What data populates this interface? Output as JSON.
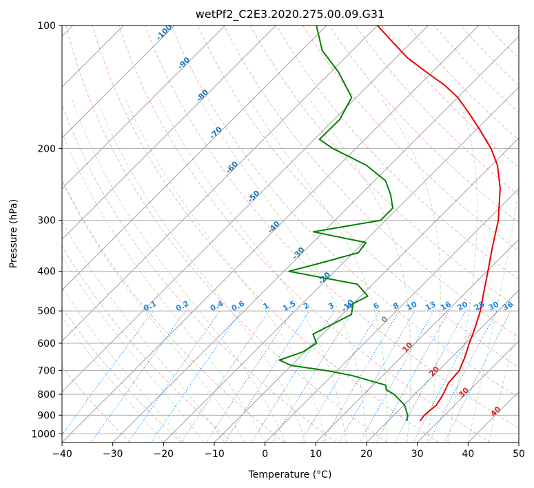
{
  "chart_data": {
    "type": "line",
    "chart_kind": "skew-T log-p diagram",
    "title": "wetPf2_C2E3.2020.275.00.09.G31",
    "xlabel": "Temperature (°C)",
    "ylabel": "Pressure (hPa)",
    "xlim": [
      -40,
      50
    ],
    "ylim": [
      1050,
      100
    ],
    "y_scale": "log",
    "grid": true,
    "x_ticks": [
      "−40",
      "−30",
      "−20",
      "−10",
      "0",
      "10",
      "20",
      "30",
      "40",
      "50"
    ],
    "y_ticks": [
      "100",
      "200",
      "300",
      "400",
      "500",
      "600",
      "700",
      "800",
      "900",
      "1000"
    ],
    "isotherm_labels": [
      "-100",
      "-90",
      "-80",
      "-70",
      "-60",
      "-50",
      "-40",
      "-30",
      "-20",
      "-10",
      "0",
      "10",
      "20",
      "30",
      "40"
    ],
    "mixing_ratio_labels": [
      "0.1",
      "0.2",
      "0.4",
      "0.6",
      "1",
      "1.5",
      "2",
      "3",
      "4",
      "6",
      "8",
      "10",
      "13",
      "16",
      "20",
      "25",
      "30",
      "36"
    ],
    "colors": {
      "temperature": "#e60000",
      "dewpoint": "#008000",
      "isotherm": "#1f77b4",
      "mixing_ratio": "#1e88e5",
      "dry_adiabat": "#d62728",
      "moist_adiabat": "#2ca02c"
    },
    "series": [
      {
        "name": "temperature",
        "color": "#e60000",
        "points": [
          {
            "p": 930,
            "t": 26.3
          },
          {
            "p": 900,
            "t": 26.0
          },
          {
            "p": 850,
            "t": 26.4
          },
          {
            "p": 800,
            "t": 25.6
          },
          {
            "p": 750,
            "t": 24.4
          },
          {
            "p": 700,
            "t": 24.1
          },
          {
            "p": 650,
            "t": 22.6
          },
          {
            "p": 600,
            "t": 20.7
          },
          {
            "p": 550,
            "t": 18.8
          },
          {
            "p": 500,
            "t": 16.5
          },
          {
            "p": 450,
            "t": 13.5
          },
          {
            "p": 400,
            "t": 10.2
          },
          {
            "p": 350,
            "t": 6.4
          },
          {
            "p": 300,
            "t": 2.2
          },
          {
            "p": 250,
            "t": -3.8
          },
          {
            "p": 220,
            "t": -8.8
          },
          {
            "p": 200,
            "t": -13.4
          },
          {
            "p": 180,
            "t": -19.3
          },
          {
            "p": 165,
            "t": -24.3
          },
          {
            "p": 150,
            "t": -30.0
          },
          {
            "p": 140,
            "t": -35.0
          },
          {
            "p": 130,
            "t": -41.2
          },
          {
            "p": 120,
            "t": -47.7
          },
          {
            "p": 110,
            "t": -53.6
          },
          {
            "p": 100,
            "t": -60.0
          }
        ]
      },
      {
        "name": "dewpoint",
        "color": "#008000",
        "points": [
          {
            "p": 930,
            "t": 23.7
          },
          {
            "p": 900,
            "t": 22.7
          },
          {
            "p": 850,
            "t": 20.1
          },
          {
            "p": 800,
            "t": 15.9
          },
          {
            "p": 780,
            "t": 13.5
          },
          {
            "p": 760,
            "t": 12.5
          },
          {
            "p": 720,
            "t": 4.0
          },
          {
            "p": 700,
            "t": -2.0
          },
          {
            "p": 680,
            "t": -10.0
          },
          {
            "p": 660,
            "t": -13.4
          },
          {
            "p": 630,
            "t": -10.4
          },
          {
            "p": 600,
            "t": -9.4
          },
          {
            "p": 570,
            "t": -11.9
          },
          {
            "p": 540,
            "t": -10.1
          },
          {
            "p": 510,
            "t": -8.2
          },
          {
            "p": 480,
            "t": -10.0
          },
          {
            "p": 460,
            "t": -8.6
          },
          {
            "p": 430,
            "t": -13.0
          },
          {
            "p": 400,
            "t": -29.0
          },
          {
            "p": 380,
            "t": -24.0
          },
          {
            "p": 360,
            "t": -19.0
          },
          {
            "p": 340,
            "t": -19.5
          },
          {
            "p": 320,
            "t": -32.0
          },
          {
            "p": 300,
            "t": -21.0
          },
          {
            "p": 280,
            "t": -21.0
          },
          {
            "p": 260,
            "t": -24.0
          },
          {
            "p": 240,
            "t": -27.8
          },
          {
            "p": 220,
            "t": -34.6
          },
          {
            "p": 200,
            "t": -44.6
          },
          {
            "p": 190,
            "t": -49.0
          },
          {
            "p": 170,
            "t": -48.9
          },
          {
            "p": 150,
            "t": -50.9
          },
          {
            "p": 130,
            "t": -58.5
          },
          {
            "p": 115,
            "t": -66.0
          },
          {
            "p": 100,
            "t": -72.0
          }
        ]
      }
    ]
  }
}
